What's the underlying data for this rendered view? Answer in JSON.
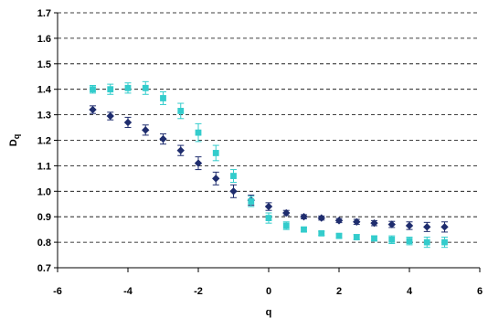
{
  "chart_data": {
    "type": "scatter",
    "xlabel": "q",
    "ylabel": {
      "main": "D",
      "sub": "q"
    },
    "xlim": [
      -6,
      6
    ],
    "ylim": [
      0.7,
      1.7
    ],
    "xticks": [
      "-6",
      "-4",
      "-2",
      "0",
      "2",
      "4",
      "6"
    ],
    "yticks": [
      "0.7",
      "0.8",
      "0.9",
      "1.0",
      "1.1",
      "1.2",
      "1.3",
      "1.4",
      "1.5",
      "1.6",
      "1.7"
    ],
    "grid": "horizontal-dashed",
    "legend": "none",
    "series": [
      {
        "marker": "diamond",
        "color": "#1f2d6e",
        "x": [
          -5,
          -4.5,
          -4,
          -3.5,
          -3,
          -2.5,
          -2,
          -1.5,
          -1,
          -0.5,
          0,
          0.5,
          1,
          1.5,
          2,
          2.5,
          3,
          3.5,
          4,
          4.5,
          5
        ],
        "y": [
          1.32,
          1.295,
          1.27,
          1.24,
          1.205,
          1.16,
          1.11,
          1.05,
          1.0,
          0.965,
          0.94,
          0.915,
          0.9,
          0.895,
          0.885,
          0.88,
          0.875,
          0.87,
          0.865,
          0.86,
          0.86
        ],
        "err": [
          0.015,
          0.015,
          0.02,
          0.02,
          0.02,
          0.02,
          0.025,
          0.025,
          0.025,
          0.02,
          0.015,
          0.01,
          0.008,
          0.008,
          0.008,
          0.01,
          0.01,
          0.012,
          0.015,
          0.018,
          0.02
        ]
      },
      {
        "marker": "square",
        "color": "#33cccc",
        "x": [
          -5,
          -4.5,
          -4,
          -3.5,
          -3,
          -2.5,
          -2,
          -1.5,
          -1,
          -0.5,
          0,
          0.5,
          1,
          1.5,
          2,
          2.5,
          3,
          3.5,
          4,
          4.5,
          5
        ],
        "y": [
          1.4,
          1.4,
          1.405,
          1.405,
          1.365,
          1.315,
          1.23,
          1.15,
          1.06,
          0.96,
          0.895,
          0.865,
          0.85,
          0.835,
          0.825,
          0.82,
          0.815,
          0.81,
          0.805,
          0.8,
          0.8
        ],
        "err": [
          0.015,
          0.02,
          0.02,
          0.025,
          0.025,
          0.03,
          0.035,
          0.03,
          0.025,
          0.02,
          0.02,
          0.015,
          0.008,
          0.008,
          0.008,
          0.01,
          0.01,
          0.015,
          0.015,
          0.02,
          0.02
        ]
      }
    ]
  }
}
